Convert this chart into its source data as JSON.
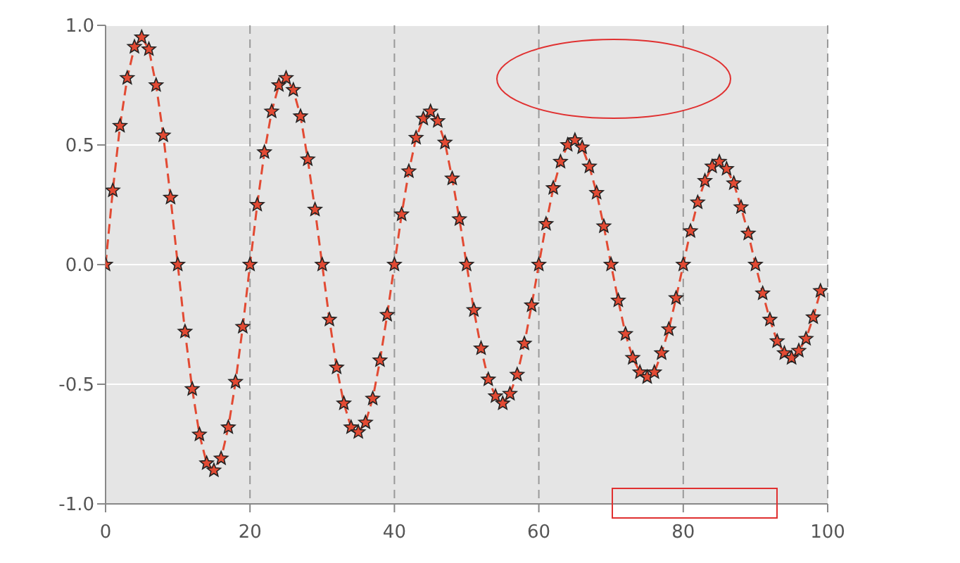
{
  "chart_data": {
    "type": "line",
    "x": [
      0,
      1,
      2,
      3,
      4,
      5,
      6,
      7,
      8,
      9,
      10,
      11,
      12,
      13,
      14,
      15,
      16,
      17,
      18,
      19,
      20,
      21,
      22,
      23,
      24,
      25,
      26,
      27,
      28,
      29,
      30,
      31,
      32,
      33,
      34,
      35,
      36,
      37,
      38,
      39,
      40,
      41,
      42,
      43,
      44,
      45,
      46,
      47,
      48,
      49,
      50,
      51,
      52,
      53,
      54,
      55,
      56,
      57,
      58,
      59,
      60,
      61,
      62,
      63,
      64,
      65,
      66,
      67,
      68,
      69,
      70,
      71,
      72,
      73,
      74,
      75,
      76,
      77,
      78,
      79,
      80,
      81,
      82,
      83,
      84,
      85,
      86,
      87,
      88,
      89,
      90,
      91,
      92,
      93,
      94,
      95,
      96,
      97,
      98,
      99
    ],
    "series": [
      {
        "color": "#e24a33",
        "values": [
          0,
          0.31,
          0.58,
          0.78,
          0.91,
          0.95,
          0.9,
          0.75,
          0.54,
          0.28,
          0,
          -0.28,
          -0.52,
          -0.71,
          -0.83,
          -0.86,
          -0.81,
          -0.68,
          -0.49,
          -0.26,
          0,
          0.25,
          0.47,
          0.64,
          0.75,
          0.78,
          0.73,
          0.62,
          0.44,
          0.23,
          0,
          -0.23,
          -0.43,
          -0.58,
          -0.68,
          -0.7,
          -0.66,
          -0.56,
          -0.4,
          -0.21,
          0,
          0.21,
          0.39,
          0.53,
          0.61,
          0.64,
          0.6,
          0.51,
          0.36,
          0.19,
          0,
          -0.19,
          -0.35,
          -0.48,
          -0.55,
          -0.58,
          -0.54,
          -0.46,
          -0.33,
          -0.17,
          0,
          0.17,
          0.32,
          0.43,
          0.5,
          0.52,
          0.49,
          0.41,
          0.3,
          0.16,
          0,
          -0.15,
          -0.29,
          -0.39,
          -0.45,
          -0.47,
          -0.45,
          -0.37,
          -0.27,
          -0.14,
          0,
          0.14,
          0.26,
          0.35,
          0.41,
          0.43,
          0.4,
          0.34,
          0.24,
          0.13,
          0,
          -0.12,
          -0.23,
          -0.32,
          -0.37,
          -0.39,
          -0.36,
          -0.31,
          -0.22,
          -0.11
        ]
      }
    ],
    "xlim": [
      0,
      100
    ],
    "xticks": [
      0,
      20,
      40,
      60,
      80,
      100
    ],
    "ylim": [
      -1,
      1
    ],
    "yticks": [
      {
        "value": -1,
        "label": "-1.0"
      },
      {
        "value": -0.5,
        "label": "-0.5"
      },
      {
        "value": 0,
        "label": "0.0"
      },
      {
        "value": 0.5,
        "label": "0.5"
      },
      {
        "value": 1,
        "label": "1.0"
      }
    ],
    "grid": true,
    "marker": "star",
    "line_style": "dashed"
  }
}
